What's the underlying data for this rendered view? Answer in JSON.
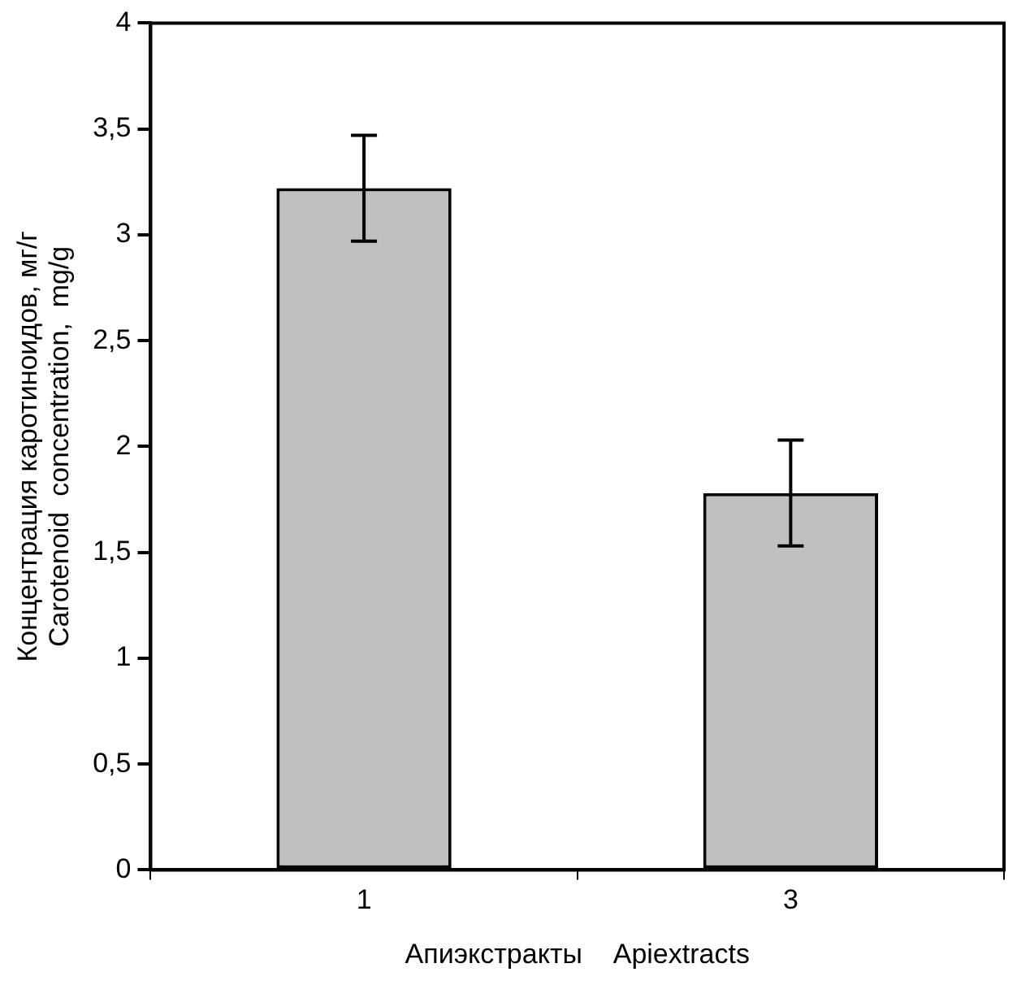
{
  "chart_data": {
    "type": "bar",
    "xlabel": "Апиэкстракты    Apiextracts",
    "ylabel": "Концентрация каротиноидов, мг/г\nCarotenoid  concentration,  mg/g",
    "categories": [
      "1",
      "3"
    ],
    "values": [
      3.22,
      1.78
    ],
    "errors": [
      0.25,
      0.25
    ],
    "color": "#c0c0c0",
    "ylim": [
      0,
      4
    ],
    "yticks": [
      0,
      {
        "value": 0.5,
        "label": "0,5"
      },
      1,
      {
        "value": 1.5,
        "label": "1,5"
      },
      2,
      {
        "value": 2.5,
        "label": "2,5"
      },
      3,
      {
        "value": 3.5,
        "label": "3,5"
      },
      4
    ],
    "grid": false,
    "legend": false
  }
}
